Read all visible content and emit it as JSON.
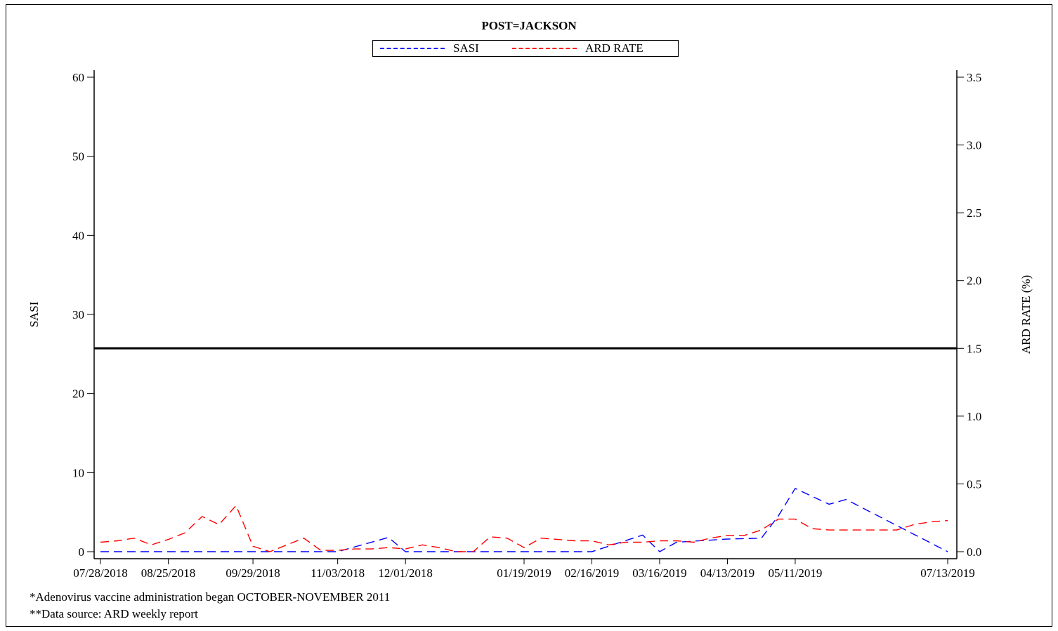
{
  "chart_data": {
    "type": "line",
    "title": "POST=JACKSON",
    "ylabel": "SASI",
    "y2label": "ARD RATE (%)",
    "xlabel": "",
    "legend_placement": "top-center",
    "grid": false,
    "ylim": [
      0,
      60
    ],
    "y2lim": [
      0,
      3.5
    ],
    "y_ticks": [
      "0",
      "10",
      "20",
      "30",
      "40",
      "50",
      "60"
    ],
    "y2_ticks": [
      "0.0",
      "0.5",
      "1.0",
      "1.5",
      "2.0",
      "2.5",
      "3.0",
      "3.5"
    ],
    "x_tick_labels": [
      "07/28/2018",
      "08/25/2018",
      "09/29/2018",
      "11/03/2018",
      "12/01/2018",
      "01/19/2019",
      "02/16/2019",
      "03/16/2019",
      "04/13/2019",
      "05/11/2019",
      "07/13/2019"
    ],
    "x": [
      "07/28/2018",
      "08/04/2018",
      "08/11/2018",
      "08/18/2018",
      "08/25/2018",
      "09/01/2018",
      "09/08/2018",
      "09/15/2018",
      "09/22/2018",
      "09/29/2018",
      "10/06/2018",
      "10/13/2018",
      "10/20/2018",
      "10/27/2018",
      "11/03/2018",
      "11/10/2018",
      "11/17/2018",
      "11/24/2018",
      "12/01/2018",
      "12/08/2018",
      "12/15/2018",
      "12/22/2018",
      "12/29/2018",
      "01/05/2019",
      "01/12/2019",
      "01/19/2019",
      "01/26/2019",
      "02/02/2019",
      "02/09/2019",
      "02/16/2019",
      "02/23/2019",
      "03/02/2019",
      "03/09/2019",
      "03/16/2019",
      "03/23/2019",
      "03/30/2019",
      "04/06/2019",
      "04/13/2019",
      "04/20/2019",
      "04/27/2019",
      "05/04/2019",
      "05/11/2019",
      "05/18/2019",
      "05/25/2019",
      "06/01/2019",
      "06/08/2019",
      "06/15/2019",
      "06/22/2019",
      "06/29/2019",
      "07/06/2019",
      "07/13/2019"
    ],
    "series": [
      {
        "name": "SASI",
        "axis": "left",
        "color": "#0000ff",
        "x": [
          "07/28/2018",
          "09/29/2018",
          "11/03/2018",
          "11/24/2018",
          "12/01/2018",
          "01/19/2019",
          "02/16/2019",
          "03/09/2019",
          "03/16/2019",
          "03/23/2019",
          "04/13/2019",
          "04/27/2019",
          "05/04/2019",
          "05/11/2019",
          "05/25/2019",
          "06/01/2019",
          "07/13/2019"
        ],
        "values": [
          0,
          0,
          0,
          1.8,
          0,
          0,
          0,
          2.1,
          0,
          1.2,
          1.6,
          1.7,
          4.5,
          8.0,
          6.0,
          6.6,
          0
        ]
      },
      {
        "name": "ARD RATE",
        "axis": "right",
        "color": "#ff0000",
        "x": [
          "07/28/2018",
          "08/04/2018",
          "08/11/2018",
          "08/18/2018",
          "08/25/2018",
          "09/01/2018",
          "09/08/2018",
          "09/15/2018",
          "09/22/2018",
          "09/29/2018",
          "10/06/2018",
          "10/13/2018",
          "10/20/2018",
          "10/27/2018",
          "11/03/2018",
          "11/10/2018",
          "11/17/2018",
          "11/24/2018",
          "12/01/2018",
          "12/08/2018",
          "12/15/2018",
          "12/22/2018",
          "12/29/2018",
          "01/05/2019",
          "01/12/2019",
          "01/19/2019",
          "01/26/2019",
          "02/02/2019",
          "02/09/2019",
          "02/16/2019",
          "02/23/2019",
          "03/02/2019",
          "03/09/2019",
          "03/16/2019",
          "03/23/2019",
          "03/30/2019",
          "04/06/2019",
          "04/13/2019",
          "04/20/2019",
          "04/27/2019",
          "05/04/2019",
          "05/11/2019",
          "05/18/2019",
          "05/25/2019",
          "06/01/2019",
          "06/08/2019",
          "06/15/2019",
          "06/22/2019",
          "06/29/2019",
          "07/06/2019",
          "07/13/2019"
        ],
        "values": [
          0.07,
          0.08,
          0.1,
          0.05,
          0.09,
          0.14,
          0.26,
          0.2,
          0.34,
          0.04,
          0.0,
          0.05,
          0.1,
          0.01,
          0.01,
          0.02,
          0.02,
          0.03,
          0.02,
          0.05,
          0.03,
          0.0,
          0.0,
          0.11,
          0.1,
          0.03,
          0.1,
          0.09,
          0.08,
          0.08,
          0.05,
          0.07,
          0.07,
          0.08,
          0.08,
          0.07,
          0.1,
          0.12,
          0.12,
          0.16,
          0.24,
          0.24,
          0.17,
          0.16,
          0.16,
          0.16,
          0.16,
          0.16,
          0.2,
          0.22,
          0.23
        ]
      }
    ],
    "reference_lines": [
      {
        "axis": "right",
        "value": 1.5,
        "color": "#000000"
      }
    ]
  },
  "legend": {
    "items": [
      {
        "label": "SASI",
        "color": "#0000ff"
      },
      {
        "label": "ARD RATE",
        "color": "#ff0000"
      }
    ]
  },
  "footnotes": [
    "*Adenovirus vaccine administration began OCTOBER-NOVEMBER 2011",
    "**Data source: ARD weekly report"
  ]
}
